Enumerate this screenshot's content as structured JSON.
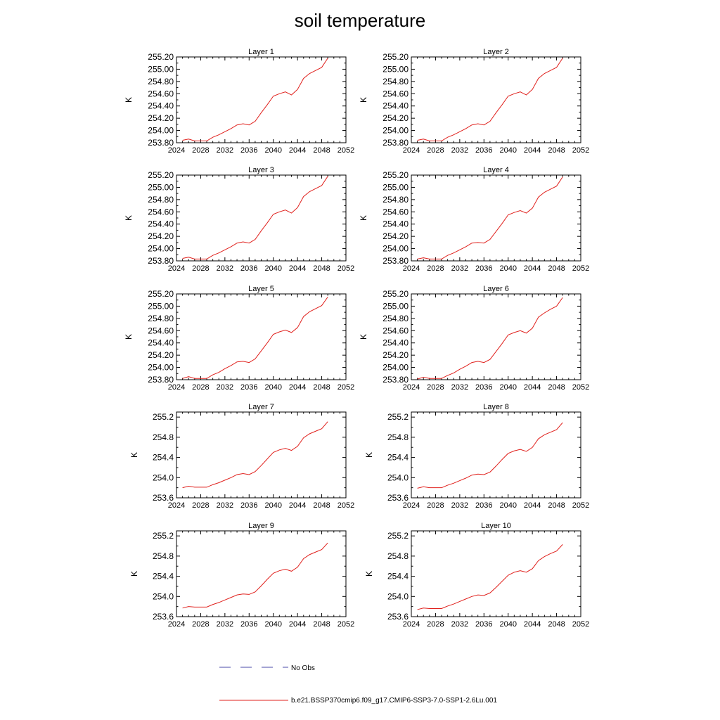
{
  "page": {
    "title": "soil temperature"
  },
  "colors": {
    "model_line": "#e0201c",
    "obs_line": "#4a4aa8",
    "axis": "#000000"
  },
  "legend": {
    "obs_label": "No Obs",
    "model_label": "b.e21.BSSP370cmip6.f09_g17.CMIP6-SSP3-7.0-SSP1-2.6Lu.001"
  },
  "chart_data": [
    {
      "type": "line",
      "title": "Layer 1",
      "ylabel": "K",
      "xlim": [
        2024,
        2052
      ],
      "xticks": [
        "2024",
        "2028",
        "2032",
        "2036",
        "2040",
        "2044",
        "2048",
        "2052"
      ],
      "ylim": [
        253.8,
        255.2
      ],
      "yticks": [
        "253.80",
        "254.00",
        "254.20",
        "254.40",
        "254.60",
        "254.80",
        "255.00",
        "255.20"
      ],
      "x": [
        2025,
        2026,
        2027,
        2028,
        2029,
        2030,
        2031,
        2032,
        2033,
        2034,
        2035,
        2036,
        2037,
        2038,
        2039,
        2040,
        2041,
        2042,
        2043,
        2044,
        2045,
        2046,
        2047,
        2048,
        2049
      ],
      "series": [
        {
          "values": [
            253.84,
            253.86,
            253.83,
            253.83,
            253.83,
            253.89,
            253.93,
            253.98,
            254.03,
            254.09,
            254.11,
            254.09,
            254.15,
            254.29,
            254.42,
            254.56,
            254.6,
            254.63,
            254.58,
            254.67,
            254.85,
            254.93,
            254.98,
            255.03,
            255.18
          ]
        }
      ]
    },
    {
      "type": "line",
      "title": "Layer 2",
      "ylabel": "K",
      "xlim": [
        2024,
        2052
      ],
      "xticks": [
        "2024",
        "2028",
        "2032",
        "2036",
        "2040",
        "2044",
        "2048",
        "2052"
      ],
      "ylim": [
        253.8,
        255.2
      ],
      "yticks": [
        "253.80",
        "254.00",
        "254.20",
        "254.40",
        "254.60",
        "254.80",
        "255.00",
        "255.20"
      ],
      "x": [
        2025,
        2026,
        2027,
        2028,
        2029,
        2030,
        2031,
        2032,
        2033,
        2034,
        2035,
        2036,
        2037,
        2038,
        2039,
        2040,
        2041,
        2042,
        2043,
        2044,
        2045,
        2046,
        2047,
        2048,
        2049
      ],
      "series": [
        {
          "values": [
            253.84,
            253.86,
            253.83,
            253.83,
            253.83,
            253.89,
            253.93,
            253.98,
            254.03,
            254.09,
            254.11,
            254.09,
            254.15,
            254.29,
            254.42,
            254.56,
            254.6,
            254.63,
            254.58,
            254.67,
            254.85,
            254.93,
            254.98,
            255.03,
            255.18
          ]
        }
      ]
    },
    {
      "type": "line",
      "title": "Layer 3",
      "ylabel": "K",
      "xlim": [
        2024,
        2052
      ],
      "xticks": [
        "2024",
        "2028",
        "2032",
        "2036",
        "2040",
        "2044",
        "2048",
        "2052"
      ],
      "ylim": [
        253.8,
        255.2
      ],
      "yticks": [
        "253.80",
        "254.00",
        "254.20",
        "254.40",
        "254.60",
        "254.80",
        "255.00",
        "255.20"
      ],
      "x": [
        2025,
        2026,
        2027,
        2028,
        2029,
        2030,
        2031,
        2032,
        2033,
        2034,
        2035,
        2036,
        2037,
        2038,
        2039,
        2040,
        2041,
        2042,
        2043,
        2044,
        2045,
        2046,
        2047,
        2048,
        2049
      ],
      "series": [
        {
          "values": [
            253.84,
            253.86,
            253.83,
            253.83,
            253.83,
            253.89,
            253.93,
            253.98,
            254.03,
            254.09,
            254.11,
            254.09,
            254.15,
            254.29,
            254.42,
            254.56,
            254.6,
            254.63,
            254.58,
            254.67,
            254.85,
            254.93,
            254.98,
            255.03,
            255.18
          ]
        }
      ]
    },
    {
      "type": "line",
      "title": "Layer 4",
      "ylabel": "K",
      "xlim": [
        2024,
        2052
      ],
      "xticks": [
        "2024",
        "2028",
        "2032",
        "2036",
        "2040",
        "2044",
        "2048",
        "2052"
      ],
      "ylim": [
        253.8,
        255.2
      ],
      "yticks": [
        "253.80",
        "254.00",
        "254.20",
        "254.40",
        "254.60",
        "254.80",
        "255.00",
        "255.20"
      ],
      "x": [
        2025,
        2026,
        2027,
        2028,
        2029,
        2030,
        2031,
        2032,
        2033,
        2034,
        2035,
        2036,
        2037,
        2038,
        2039,
        2040,
        2041,
        2042,
        2043,
        2044,
        2045,
        2046,
        2047,
        2048,
        2049
      ],
      "series": [
        {
          "values": [
            253.83,
            253.85,
            253.83,
            253.83,
            253.83,
            253.89,
            253.93,
            253.98,
            254.03,
            254.09,
            254.1,
            254.09,
            254.15,
            254.28,
            254.41,
            254.55,
            254.59,
            254.62,
            254.58,
            254.66,
            254.84,
            254.92,
            254.97,
            255.02,
            255.17
          ]
        }
      ]
    },
    {
      "type": "line",
      "title": "Layer 5",
      "ylabel": "K",
      "xlim": [
        2024,
        2052
      ],
      "xticks": [
        "2024",
        "2028",
        "2032",
        "2036",
        "2040",
        "2044",
        "2048",
        "2052"
      ],
      "ylim": [
        253.8,
        255.2
      ],
      "yticks": [
        "253.80",
        "254.00",
        "254.20",
        "254.40",
        "254.60",
        "254.80",
        "255.00",
        "255.20"
      ],
      "x": [
        2025,
        2026,
        2027,
        2028,
        2029,
        2030,
        2031,
        2032,
        2033,
        2034,
        2035,
        2036,
        2037,
        2038,
        2039,
        2040,
        2041,
        2042,
        2043,
        2044,
        2045,
        2046,
        2047,
        2048,
        2049
      ],
      "series": [
        {
          "values": [
            253.82,
            253.85,
            253.82,
            253.82,
            253.82,
            253.88,
            253.92,
            253.98,
            254.03,
            254.09,
            254.1,
            254.08,
            254.14,
            254.27,
            254.4,
            254.54,
            254.58,
            254.61,
            254.57,
            254.65,
            254.83,
            254.91,
            254.96,
            255.01,
            255.15
          ]
        }
      ]
    },
    {
      "type": "line",
      "title": "Layer 6",
      "ylabel": "K",
      "xlim": [
        2024,
        2052
      ],
      "xticks": [
        "2024",
        "2028",
        "2032",
        "2036",
        "2040",
        "2044",
        "2048",
        "2052"
      ],
      "ylim": [
        253.8,
        255.2
      ],
      "yticks": [
        "253.80",
        "254.00",
        "254.20",
        "254.40",
        "254.60",
        "254.80",
        "255.00",
        "255.20"
      ],
      "x": [
        2025,
        2026,
        2027,
        2028,
        2029,
        2030,
        2031,
        2032,
        2033,
        2034,
        2035,
        2036,
        2037,
        2038,
        2039,
        2040,
        2041,
        2042,
        2043,
        2044,
        2045,
        2046,
        2047,
        2048,
        2049
      ],
      "series": [
        {
          "values": [
            253.81,
            253.84,
            253.82,
            253.82,
            253.82,
            253.87,
            253.91,
            253.97,
            254.02,
            254.08,
            254.1,
            254.08,
            254.13,
            254.26,
            254.39,
            254.53,
            254.57,
            254.6,
            254.56,
            254.64,
            254.82,
            254.89,
            254.95,
            255.0,
            255.14
          ]
        }
      ]
    },
    {
      "type": "line",
      "title": "Layer 7",
      "ylabel": "K",
      "xlim": [
        2024,
        2052
      ],
      "xticks": [
        "2024",
        "2028",
        "2032",
        "2036",
        "2040",
        "2044",
        "2048",
        "2052"
      ],
      "ylim": [
        253.6,
        255.3
      ],
      "yticks": [
        "253.6",
        "254.0",
        "254.4",
        "254.8",
        "255.2"
      ],
      "ytick_values": [
        253.6,
        254.0,
        254.4,
        254.8,
        255.2
      ],
      "x": [
        2025,
        2026,
        2027,
        2028,
        2029,
        2030,
        2031,
        2032,
        2033,
        2034,
        2035,
        2036,
        2037,
        2038,
        2039,
        2040,
        2041,
        2042,
        2043,
        2044,
        2045,
        2046,
        2047,
        2048,
        2049
      ],
      "series": [
        {
          "values": [
            253.8,
            253.83,
            253.81,
            253.81,
            253.81,
            253.86,
            253.9,
            253.95,
            254.0,
            254.06,
            254.08,
            254.06,
            254.12,
            254.24,
            254.37,
            254.5,
            254.55,
            254.58,
            254.54,
            254.62,
            254.79,
            254.87,
            254.92,
            254.97,
            255.11
          ]
        }
      ]
    },
    {
      "type": "line",
      "title": "Layer 8",
      "ylabel": "K",
      "xlim": [
        2024,
        2052
      ],
      "xticks": [
        "2024",
        "2028",
        "2032",
        "2036",
        "2040",
        "2044",
        "2048",
        "2052"
      ],
      "ylim": [
        253.6,
        255.3
      ],
      "yticks": [
        "253.6",
        "254.0",
        "254.4",
        "254.8",
        "255.2"
      ],
      "ytick_values": [
        253.6,
        254.0,
        254.4,
        254.8,
        255.2
      ],
      "x": [
        2025,
        2026,
        2027,
        2028,
        2029,
        2030,
        2031,
        2032,
        2033,
        2034,
        2035,
        2036,
        2037,
        2038,
        2039,
        2040,
        2041,
        2042,
        2043,
        2044,
        2045,
        2046,
        2047,
        2048,
        2049
      ],
      "series": [
        {
          "values": [
            253.79,
            253.82,
            253.8,
            253.8,
            253.8,
            253.85,
            253.89,
            253.94,
            253.99,
            254.05,
            254.07,
            254.06,
            254.11,
            254.23,
            254.36,
            254.48,
            254.53,
            254.56,
            254.52,
            254.6,
            254.77,
            254.85,
            254.9,
            254.95,
            255.09
          ]
        }
      ]
    },
    {
      "type": "line",
      "title": "Layer 9",
      "ylabel": "K",
      "xlim": [
        2024,
        2052
      ],
      "xticks": [
        "2024",
        "2028",
        "2032",
        "2036",
        "2040",
        "2044",
        "2048",
        "2052"
      ],
      "ylim": [
        253.6,
        255.3
      ],
      "yticks": [
        "253.6",
        "254.0",
        "254.4",
        "254.8",
        "255.2"
      ],
      "ytick_values": [
        253.6,
        254.0,
        254.4,
        254.8,
        255.2
      ],
      "x": [
        2025,
        2026,
        2027,
        2028,
        2029,
        2030,
        2031,
        2032,
        2033,
        2034,
        2035,
        2036,
        2037,
        2038,
        2039,
        2040,
        2041,
        2042,
        2043,
        2044,
        2045,
        2046,
        2047,
        2048,
        2049
      ],
      "series": [
        {
          "values": [
            253.77,
            253.8,
            253.79,
            253.79,
            253.79,
            253.84,
            253.88,
            253.93,
            253.98,
            254.03,
            254.05,
            254.04,
            254.09,
            254.21,
            254.34,
            254.46,
            254.51,
            254.54,
            254.5,
            254.58,
            254.75,
            254.83,
            254.88,
            254.93,
            255.06
          ]
        }
      ]
    },
    {
      "type": "line",
      "title": "Layer 10",
      "ylabel": "K",
      "xlim": [
        2024,
        2052
      ],
      "xticks": [
        "2024",
        "2028",
        "2032",
        "2036",
        "2040",
        "2044",
        "2048",
        "2052"
      ],
      "ylim": [
        253.6,
        255.3
      ],
      "yticks": [
        "253.6",
        "254.0",
        "254.4",
        "254.8",
        "255.2"
      ],
      "ytick_values": [
        253.6,
        254.0,
        254.4,
        254.8,
        255.2
      ],
      "x": [
        2025,
        2026,
        2027,
        2028,
        2029,
        2030,
        2031,
        2032,
        2033,
        2034,
        2035,
        2036,
        2037,
        2038,
        2039,
        2040,
        2041,
        2042,
        2043,
        2044,
        2045,
        2046,
        2047,
        2048,
        2049
      ],
      "series": [
        {
          "values": [
            253.74,
            253.77,
            253.76,
            253.76,
            253.76,
            253.81,
            253.85,
            253.9,
            253.95,
            254.0,
            254.03,
            254.02,
            254.07,
            254.18,
            254.3,
            254.42,
            254.48,
            254.51,
            254.48,
            254.55,
            254.71,
            254.79,
            254.85,
            254.9,
            255.03
          ]
        }
      ]
    }
  ]
}
